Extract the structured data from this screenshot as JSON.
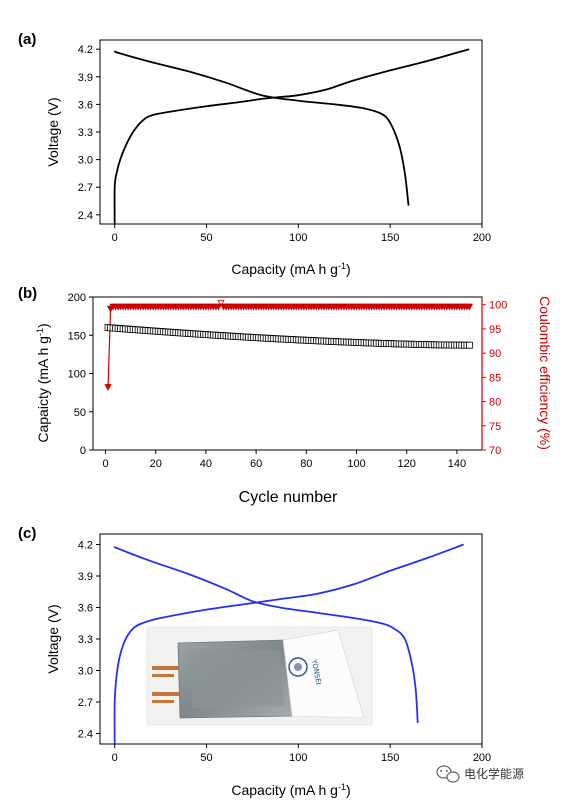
{
  "panel_labels": {
    "a": "(a)",
    "b": "(b)",
    "c": "(c)"
  },
  "watermark": {
    "text": "电化学能源",
    "icon": "wechat-icon"
  },
  "photo": {
    "brand_text": "YONSEI",
    "description": "pouch-cell photo inset"
  },
  "colors": {
    "panel_a_line": "#000000",
    "panel_c_line": "#2233ee",
    "ce_series": "#cc0000",
    "capacity_markers": "#000000"
  },
  "chart_data": [
    {
      "id": "a",
      "type": "line",
      "xlabel": "Capacity (mA h g",
      "xlabel_sup": "-1",
      "xlabel_end": ")",
      "ylabel": "Voltage (V)",
      "xlim": [
        -8,
        200
      ],
      "ylim": [
        2.3,
        4.3
      ],
      "xticks": [
        "0",
        "50",
        "100",
        "150",
        "200"
      ],
      "yticks": [
        "2.4",
        "2.7",
        "3.0",
        "3.3",
        "3.6",
        "3.9",
        "4.2"
      ],
      "series": [
        {
          "role": "charge",
          "points": [
            [
              0,
              2.3
            ],
            [
              0,
              2.7
            ],
            [
              1,
              2.85
            ],
            [
              3,
              3.0
            ],
            [
              6,
              3.15
            ],
            [
              10,
              3.3
            ],
            [
              15,
              3.42
            ],
            [
              20,
              3.48
            ],
            [
              30,
              3.52
            ],
            [
              50,
              3.58
            ],
            [
              70,
              3.63
            ],
            [
              80,
              3.66
            ],
            [
              90,
              3.68
            ],
            [
              100,
              3.7
            ],
            [
              115,
              3.76
            ],
            [
              130,
              3.86
            ],
            [
              150,
              3.97
            ],
            [
              170,
              4.07
            ],
            [
              193,
              4.2
            ]
          ]
        },
        {
          "role": "discharge",
          "points": [
            [
              0,
              4.18
            ],
            [
              2,
              4.16
            ],
            [
              20,
              4.06
            ],
            [
              40,
              3.96
            ],
            [
              60,
              3.84
            ],
            [
              80,
              3.7
            ],
            [
              100,
              3.64
            ],
            [
              120,
              3.6
            ],
            [
              135,
              3.56
            ],
            [
              145,
              3.5
            ],
            [
              150,
              3.4
            ],
            [
              155,
              3.15
            ],
            [
              158,
              2.85
            ],
            [
              160,
              2.5
            ]
          ]
        }
      ]
    },
    {
      "id": "b",
      "type": "scatter",
      "xlabel": "Cycle number",
      "ylabel": "Capaicty (mA h g",
      "ylabel_sup": "-1",
      "ylabel_end": ")",
      "y2label": "Coulombic efficiency (%)",
      "xlim": [
        -5,
        150
      ],
      "ylim": [
        0,
        200
      ],
      "y2lim": [
        70,
        101.6
      ],
      "xticks": [
        "0",
        "20",
        "40",
        "60",
        "80",
        "100",
        "120",
        "140"
      ],
      "yticks": [
        "0",
        "50",
        "100",
        "150",
        "200"
      ],
      "y2ticks": [
        "70",
        "75",
        "80",
        "85",
        "90",
        "95",
        "100"
      ],
      "capacity": {
        "start": 160,
        "end": 137,
        "cycles": 145
      },
      "coulombic_efficiency": {
        "first_cycle": 83,
        "later": 99.6,
        "outlier_cycle": 46,
        "outlier_value": 100.4
      }
    },
    {
      "id": "c",
      "type": "line",
      "xlabel": "Capacity (mA h g",
      "xlabel_sup": "-1",
      "xlabel_end": ")",
      "ylabel": "Voltage (V)",
      "xlim": [
        -8,
        200
      ],
      "ylim": [
        2.3,
        4.3
      ],
      "xticks": [
        "0",
        "50",
        "100",
        "150",
        "200"
      ],
      "yticks": [
        "2.4",
        "2.7",
        "3.0",
        "3.3",
        "3.6",
        "3.9",
        "4.2"
      ],
      "series": [
        {
          "role": "charge",
          "points": [
            [
              0,
              2.3
            ],
            [
              0,
              2.7
            ],
            [
              1,
              2.95
            ],
            [
              3,
              3.15
            ],
            [
              6,
              3.3
            ],
            [
              10,
              3.4
            ],
            [
              15,
              3.45
            ],
            [
              25,
              3.5
            ],
            [
              50,
              3.58
            ],
            [
              70,
              3.63
            ],
            [
              90,
              3.68
            ],
            [
              110,
              3.73
            ],
            [
              130,
              3.82
            ],
            [
              150,
              3.95
            ],
            [
              170,
              4.07
            ],
            [
              190,
              4.2
            ]
          ]
        },
        {
          "role": "discharge",
          "points": [
            [
              0,
              4.18
            ],
            [
              2,
              4.16
            ],
            [
              20,
              4.04
            ],
            [
              40,
              3.92
            ],
            [
              60,
              3.78
            ],
            [
              75,
              3.66
            ],
            [
              90,
              3.6
            ],
            [
              110,
              3.55
            ],
            [
              130,
              3.5
            ],
            [
              145,
              3.45
            ],
            [
              152,
              3.4
            ],
            [
              158,
              3.3
            ],
            [
              162,
              3.05
            ],
            [
              164,
              2.8
            ],
            [
              165,
              2.5
            ]
          ]
        }
      ]
    }
  ]
}
